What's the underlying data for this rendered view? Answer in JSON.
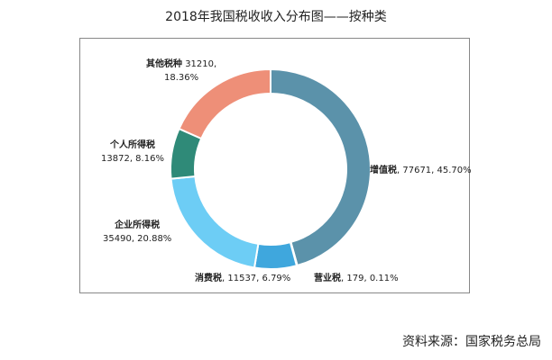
{
  "chart_data": {
    "type": "pie",
    "donut": true,
    "title": "2018年我国税收收入分布图——按种类",
    "slices": [
      {
        "name": "增值税",
        "value": 77671,
        "percent": "45.70%",
        "color": "#5b92aa"
      },
      {
        "name": "营业税",
        "value": 179,
        "percent": "0.11%",
        "color": "#2f7fb5"
      },
      {
        "name": "消费税",
        "value": 11537,
        "percent": "6.79%",
        "color": "#3fa7dd"
      },
      {
        "name": "企业所得税",
        "value": 35490,
        "percent": "20.88%",
        "color": "#6dcdf5"
      },
      {
        "name": "个人所得税",
        "value": 13872,
        "percent": "8.16%",
        "color": "#2f8a78"
      },
      {
        "name": "其他税种",
        "value": 31210,
        "percent": "18.36%",
        "color": "#ee8f78"
      }
    ]
  },
  "source": "资料来源：国家税务总局"
}
